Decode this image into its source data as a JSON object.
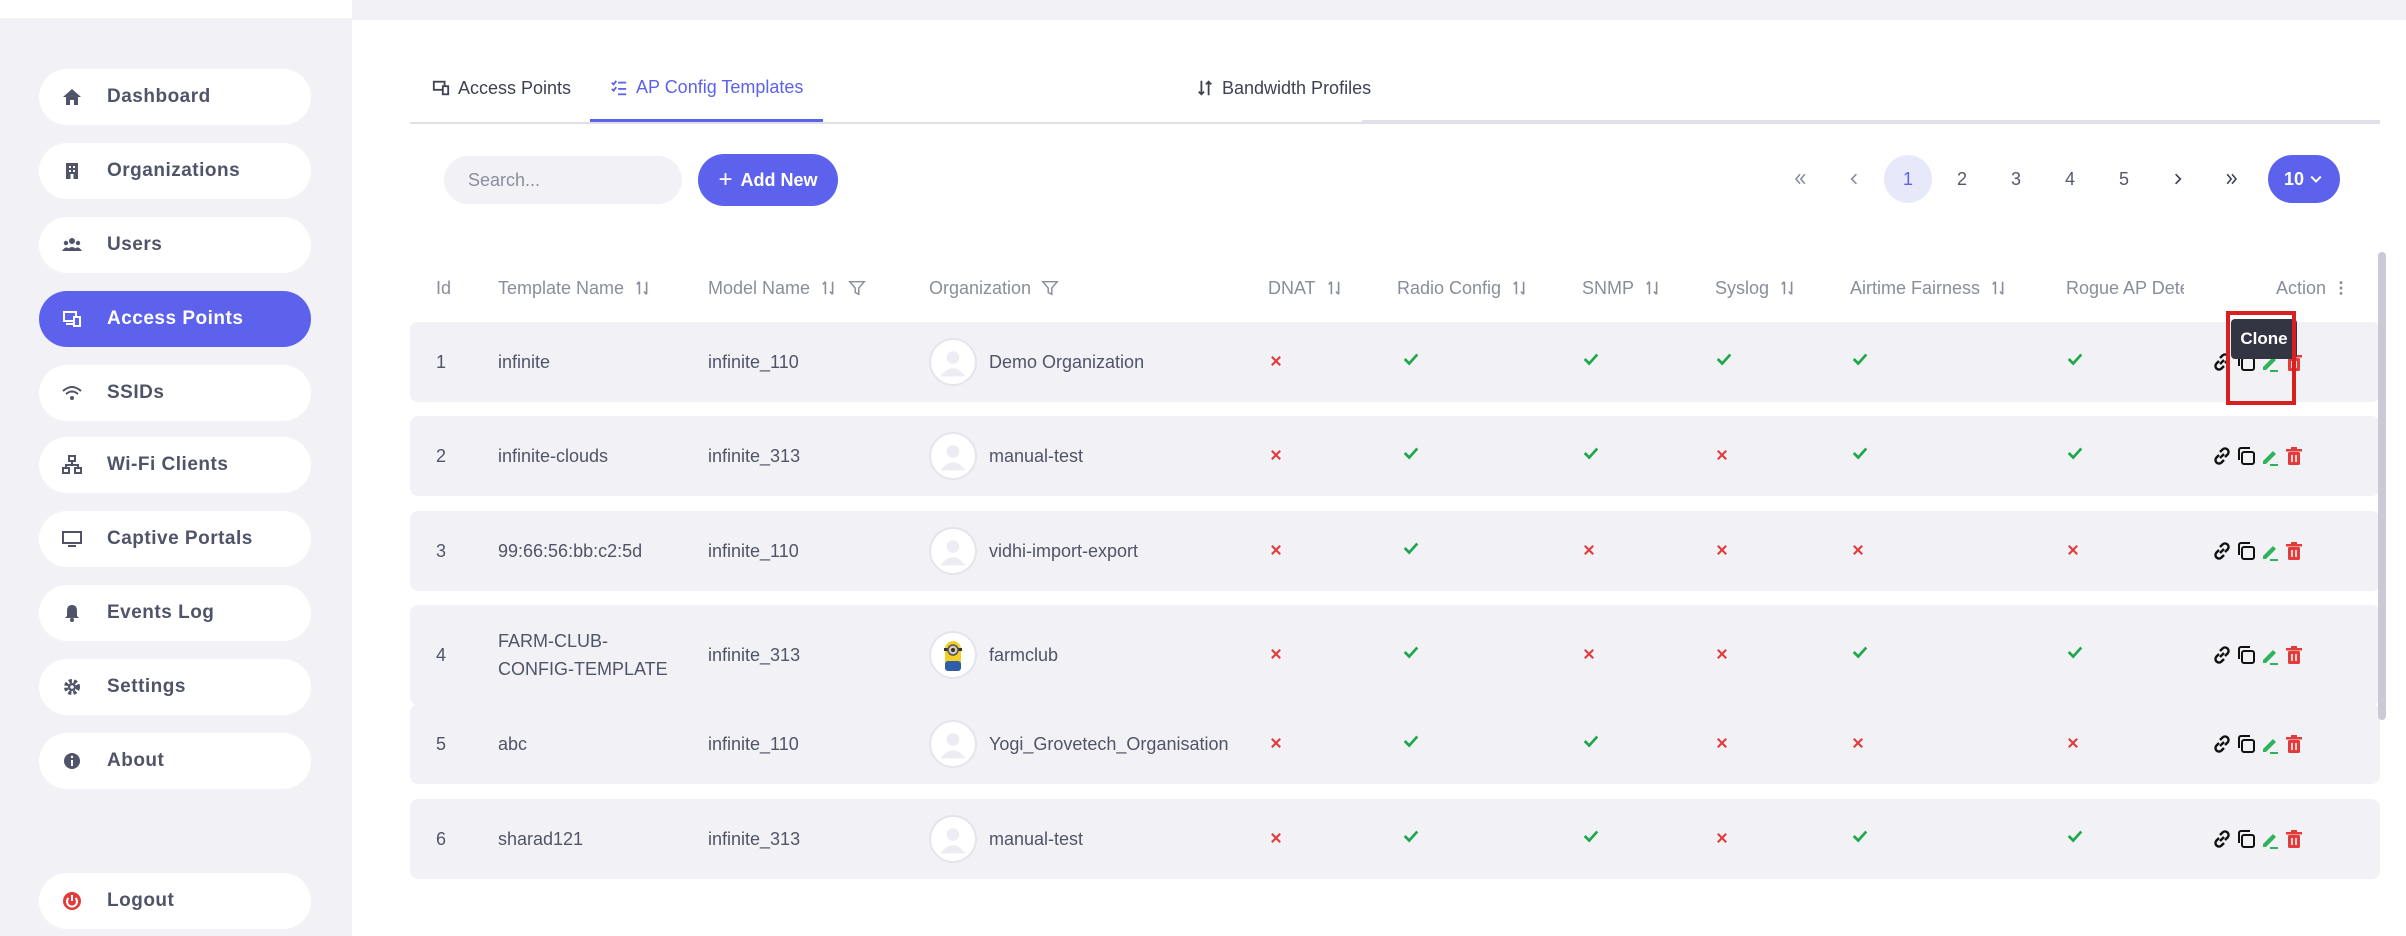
{
  "sidebar": {
    "items": [
      {
        "label": "Dashboard",
        "icon": "home-icon"
      },
      {
        "label": "Organizations",
        "icon": "building-icon"
      },
      {
        "label": "Users",
        "icon": "users-icon"
      },
      {
        "label": "Access Points",
        "icon": "devices-icon",
        "active": true
      },
      {
        "label": "SSIDs",
        "icon": "wifi-icon"
      },
      {
        "label": "Wi-Fi Clients",
        "icon": "network-icon"
      },
      {
        "label": "Captive Portals",
        "icon": "monitor-icon"
      },
      {
        "label": "Events Log",
        "icon": "bell-icon"
      },
      {
        "label": "Settings",
        "icon": "gear-icon"
      },
      {
        "label": "About",
        "icon": "info-icon"
      }
    ],
    "logout": "Logout"
  },
  "tabs": [
    {
      "label": "Access Points",
      "icon": "devices-icon"
    },
    {
      "label": "AP Config Templates",
      "icon": "list-icon",
      "active": true
    },
    {
      "label": "Bandwidth Profiles",
      "icon": "sort-arrows-icon"
    }
  ],
  "toolbar": {
    "search_placeholder": "Search...",
    "add_label": "Add New",
    "page_size": "10"
  },
  "pagination": {
    "pages": [
      "1",
      "2",
      "3",
      "4",
      "5"
    ],
    "current": "1"
  },
  "table": {
    "headers": {
      "id": "Id",
      "template_name": "Template Name",
      "model_name": "Model Name",
      "organization": "Organization",
      "dnat": "DNAT",
      "radio_config": "Radio Config",
      "snmp": "SNMP",
      "syslog": "Syslog",
      "airtime_fairness": "Airtime Fairness",
      "rogue_ap": "Rogue AP Dete",
      "action": "Action"
    },
    "rows": [
      {
        "id": "1",
        "name": "infinite",
        "model": "infinite_110",
        "org": "Demo Organization",
        "flags": [
          false,
          true,
          true,
          true,
          true,
          true
        ]
      },
      {
        "id": "2",
        "name": "infinite-clouds",
        "model": "infinite_313",
        "org": "manual-test",
        "flags": [
          false,
          true,
          true,
          false,
          true,
          true
        ]
      },
      {
        "id": "3",
        "name": "99:66:56:bb:c2:5d",
        "model": "infinite_110",
        "org": "vidhi-import-export",
        "flags": [
          false,
          true,
          false,
          false,
          false,
          false
        ]
      },
      {
        "id": "4",
        "name": "FARM-CLUB-CONFIG-TEMPLATE",
        "model": "infinite_313",
        "org": "farmclub",
        "flags": [
          false,
          true,
          false,
          false,
          true,
          true
        ]
      },
      {
        "id": "5",
        "name": "abc",
        "model": "infinite_110",
        "org": "Yogi_Grovetech_Organisation",
        "flags": [
          false,
          true,
          true,
          false,
          false,
          false
        ]
      },
      {
        "id": "6",
        "name": "sharad121",
        "model": "infinite_313",
        "org": "manual-test",
        "flags": [
          false,
          true,
          true,
          false,
          true,
          true
        ]
      }
    ]
  },
  "tooltip": "Clone",
  "colors": {
    "accent": "#5c62ec",
    "yes": "#1fa74b",
    "no": "#e23b3b"
  }
}
